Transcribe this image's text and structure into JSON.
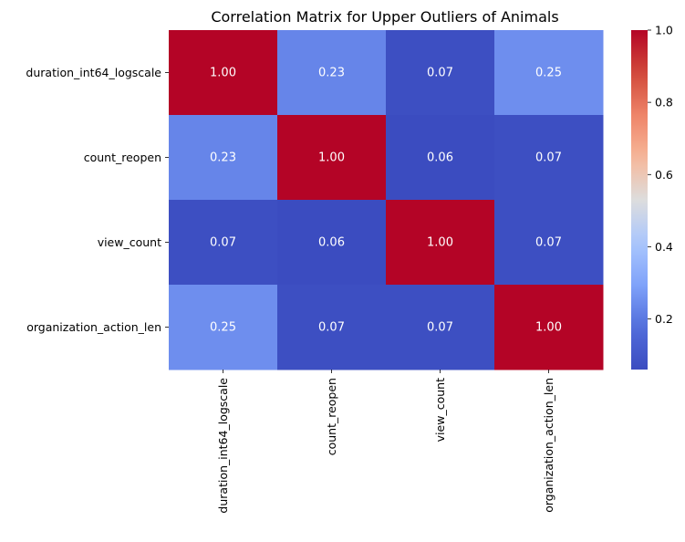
{
  "chart_data": {
    "type": "heatmap",
    "title": "Correlation Matrix for Upper Outliers of Animals",
    "row_labels": [
      "duration_int64_logscale",
      "count_reopen",
      "view_count",
      "organization_action_len"
    ],
    "col_labels": [
      "duration_int64_logscale",
      "count_reopen",
      "view_count",
      "organization_action_len"
    ],
    "values": [
      [
        1.0,
        0.23,
        0.07,
        0.25
      ],
      [
        0.23,
        1.0,
        0.06,
        0.07
      ],
      [
        0.07,
        0.06,
        1.0,
        0.07
      ],
      [
        0.25,
        0.07,
        0.07,
        1.0
      ]
    ],
    "cell_labels": [
      [
        "1.00",
        "0.23",
        "0.07",
        "0.25"
      ],
      [
        "0.23",
        "1.00",
        "0.06",
        "0.07"
      ],
      [
        "0.07",
        "0.06",
        "1.00",
        "0.07"
      ],
      [
        "0.25",
        "0.07",
        "0.07",
        "1.00"
      ]
    ],
    "colormap": "coolwarm",
    "vmin": 0.06,
    "vmax": 1.0,
    "colorbar_ticks": [
      "0.2",
      "0.4",
      "0.6",
      "0.8",
      "1.0"
    ],
    "colorbar_tick_values": [
      0.2,
      0.4,
      0.6,
      0.8,
      1.0
    ],
    "xlabel": "",
    "ylabel": "",
    "legend": "colorbar-right"
  }
}
